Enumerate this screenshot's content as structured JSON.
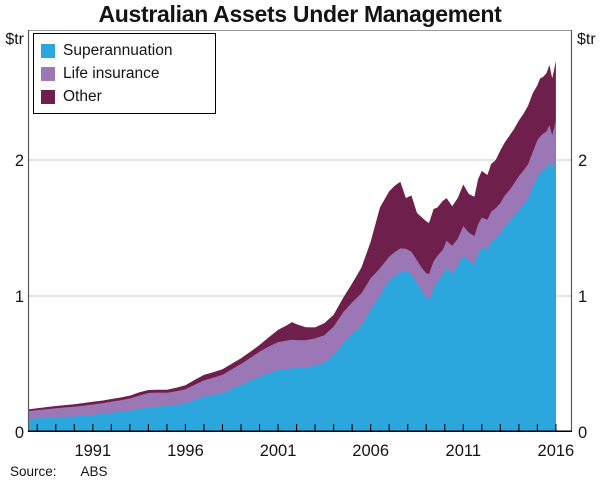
{
  "title": "Australian Assets Under Management",
  "unit_left": "$tr",
  "unit_right": "$tr",
  "source": {
    "label": "Source:",
    "value": "ABS"
  },
  "colors": {
    "superannuation": "#2BA7DE",
    "life_insurance": "#9C77B6",
    "other": "#6E1F4B",
    "gridline": "#c8c8c8",
    "frame": "#5a5a5a",
    "axis": "#000000",
    "text": "#141414"
  },
  "chart_data": {
    "type": "area",
    "stacked": true,
    "title": "Australian Assets Under Management",
    "xlabel": "",
    "ylabel": "$tr",
    "unit": "$tr (trillions of Australian dollars)",
    "xlim": [
      1987.5,
      2016.87
    ],
    "ylim": [
      0,
      2.956
    ],
    "x_tick_labels": [
      1991,
      1996,
      2001,
      2006,
      2011,
      2016
    ],
    "minor_x_ticks_every_year": true,
    "y_tick_labels": [
      0,
      1,
      2
    ],
    "grid_y": [
      1,
      2
    ],
    "legend_position": "top-left",
    "x": [
      1987.5,
      1988,
      1988.5,
      1989,
      1989.5,
      1990,
      1990.5,
      1991,
      1991.5,
      1992,
      1992.5,
      1993,
      1993.5,
      1994,
      1994.5,
      1995,
      1995.5,
      1996,
      1996.5,
      1997,
      1997.5,
      1998,
      1998.5,
      1999,
      1999.5,
      2000,
      2000.5,
      2001,
      2001.5,
      2001.75,
      2002,
      2002.5,
      2003,
      2003.5,
      2004,
      2004.5,
      2005,
      2005.5,
      2006,
      2006.5,
      2007,
      2007.3,
      2007.6,
      2007.9,
      2008.2,
      2008.5,
      2008.75,
      2009,
      2009.15,
      2009.4,
      2009.6,
      2009.9,
      2010.1,
      2010.4,
      2010.7,
      2011,
      2011.3,
      2011.6,
      2011.8,
      2012,
      2012.3,
      2012.5,
      2012.75,
      2013,
      2013.25,
      2013.5,
      2013.75,
      2014,
      2014.25,
      2014.5,
      2014.75,
      2015,
      2015.15,
      2015.3,
      2015.5,
      2015.65,
      2015.8,
      2015.9,
      2016
    ],
    "series": [
      {
        "name": "Superannuation",
        "color": "#2BA7DE",
        "values": [
          0.095,
          0.1,
          0.104,
          0.108,
          0.111,
          0.113,
          0.119,
          0.126,
          0.133,
          0.141,
          0.148,
          0.156,
          0.169,
          0.181,
          0.186,
          0.191,
          0.2,
          0.209,
          0.236,
          0.261,
          0.273,
          0.286,
          0.316,
          0.346,
          0.376,
          0.406,
          0.431,
          0.456,
          0.464,
          0.468,
          0.47,
          0.474,
          0.489,
          0.511,
          0.566,
          0.649,
          0.722,
          0.781,
          0.898,
          1.003,
          1.118,
          1.148,
          1.172,
          1.188,
          1.158,
          1.092,
          1.041,
          0.988,
          0.972,
          1.058,
          1.102,
          1.158,
          1.208,
          1.163,
          1.221,
          1.298,
          1.258,
          1.232,
          1.309,
          1.356,
          1.342,
          1.398,
          1.422,
          1.462,
          1.512,
          1.549,
          1.591,
          1.632,
          1.671,
          1.718,
          1.799,
          1.878,
          1.905,
          1.921,
          1.949,
          1.989,
          1.932,
          1.972,
          2.018
        ]
      },
      {
        "name": "Life insurance",
        "color": "#9C77B6",
        "values": [
          0.058,
          0.061,
          0.064,
          0.067,
          0.07,
          0.073,
          0.075,
          0.076,
          0.078,
          0.081,
          0.085,
          0.09,
          0.099,
          0.106,
          0.104,
          0.097,
          0.1,
          0.105,
          0.112,
          0.119,
          0.126,
          0.135,
          0.144,
          0.154,
          0.169,
          0.184,
          0.198,
          0.205,
          0.209,
          0.21,
          0.206,
          0.2,
          0.199,
          0.201,
          0.209,
          0.229,
          0.231,
          0.238,
          0.232,
          0.2,
          0.172,
          0.175,
          0.178,
          0.16,
          0.168,
          0.17,
          0.168,
          0.18,
          0.19,
          0.198,
          0.192,
          0.183,
          0.198,
          0.206,
          0.199,
          0.216,
          0.208,
          0.209,
          0.219,
          0.221,
          0.218,
          0.222,
          0.224,
          0.221,
          0.228,
          0.23,
          0.238,
          0.248,
          0.252,
          0.252,
          0.259,
          0.268,
          0.268,
          0.271,
          0.262,
          0.268,
          0.252,
          0.262,
          0.272
        ]
      },
      {
        "name": "Other",
        "color": "#6E1F4B",
        "values": [
          0.013,
          0.014,
          0.015,
          0.016,
          0.017,
          0.018,
          0.019,
          0.02,
          0.02,
          0.021,
          0.021,
          0.022,
          0.023,
          0.022,
          0.021,
          0.023,
          0.026,
          0.03,
          0.035,
          0.04,
          0.041,
          0.041,
          0.042,
          0.043,
          0.045,
          0.05,
          0.068,
          0.09,
          0.114,
          0.13,
          0.116,
          0.096,
          0.081,
          0.089,
          0.086,
          0.106,
          0.139,
          0.19,
          0.27,
          0.447,
          0.48,
          0.487,
          0.49,
          0.372,
          0.414,
          0.348,
          0.371,
          0.382,
          0.375,
          0.384,
          0.356,
          0.359,
          0.314,
          0.291,
          0.3,
          0.306,
          0.284,
          0.289,
          0.332,
          0.343,
          0.33,
          0.35,
          0.354,
          0.387,
          0.39,
          0.401,
          0.401,
          0.41,
          0.417,
          0.43,
          0.432,
          0.404,
          0.427,
          0.418,
          0.429,
          0.443,
          0.416,
          0.426,
          0.44
        ]
      }
    ]
  }
}
